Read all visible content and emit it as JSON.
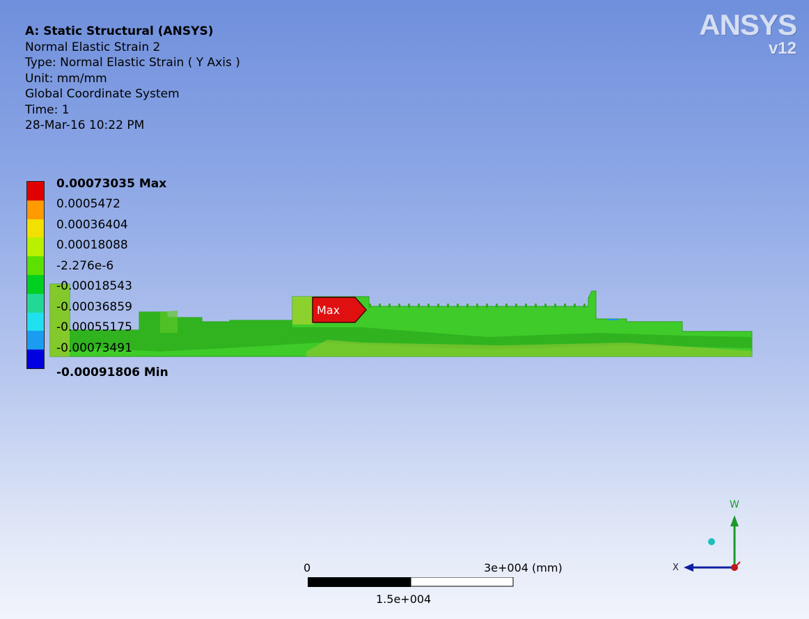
{
  "header": {
    "title": "A: Static Structural (ANSYS)",
    "result_name": "Normal Elastic Strain 2",
    "type": "Type: Normal Elastic Strain ( Y Axis )",
    "unit": "Unit: mm/mm",
    "coordinate_system": "Global Coordinate System",
    "time": "Time: 1",
    "timestamp": "28-Mar-16 10:22 PM"
  },
  "logo": {
    "brand": "ANSYS",
    "version": "v12"
  },
  "legend": {
    "labels": [
      "0.00073035 Max",
      "0.0005472",
      "0.00036404",
      "0.00018088",
      "-2.276e-6",
      "-0.00018543",
      "-0.00036859",
      "-0.00055175",
      "-0.00073491",
      "-0.00091806 Min"
    ],
    "colors": [
      "#e00000",
      "#ff9a00",
      "#f2e000",
      "#b8f000",
      "#5ce000",
      "#00d020",
      "#22d896",
      "#1ee0ee",
      "#1c9cf0",
      "#0000e0"
    ]
  },
  "probe": {
    "label": "Max"
  },
  "scale": {
    "min": "0",
    "max": "3e+004 (mm)",
    "mid": "1.5e+004"
  },
  "triad": {
    "y_axis": "W",
    "x_axis": "X"
  }
}
